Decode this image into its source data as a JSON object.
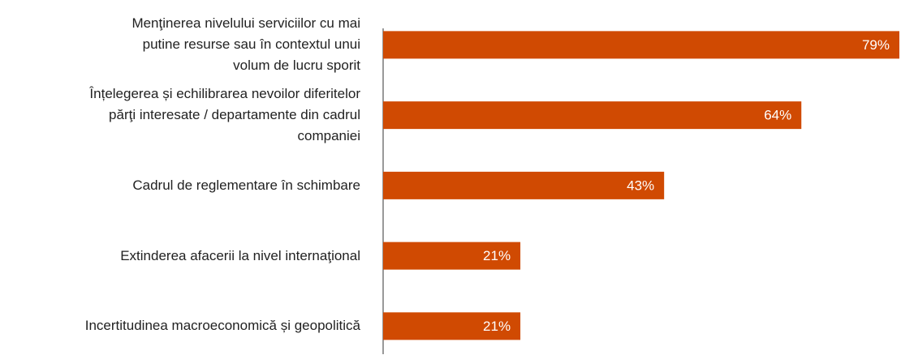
{
  "chart_data": {
    "type": "hbar",
    "categories": [
      "Menţinerea nivelului serviciilor cu mai\nputine resurse sau în contextul unui\nvolum de lucru sporit",
      "Înțelegerea și echilibrarea nevoilor diferitelor\npărţi interesate / departamente din cadrul\ncompaniei",
      "Cadrul de reglementare în schimbare",
      "Extinderea afacerii la nivel internaţional",
      "Incertitudinea macroeconomică și geopolitică"
    ],
    "values": [
      79,
      64,
      43,
      21,
      21
    ],
    "value_labels": [
      "79%",
      "64%",
      "43%",
      "21%",
      "21%"
    ],
    "color": "#d04a02"
  }
}
